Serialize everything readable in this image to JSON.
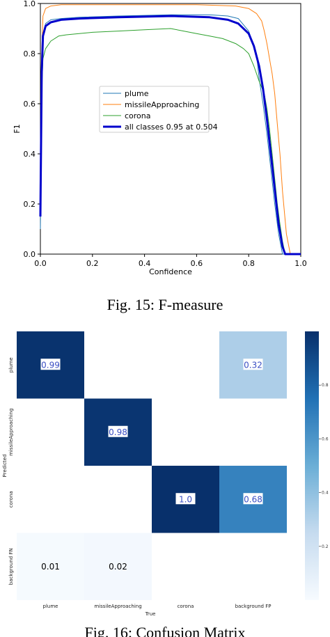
{
  "figures": [
    {
      "caption": "Fig. 15: F-measure"
    },
    {
      "caption": "Fig. 16: Confusion Matrix"
    }
  ],
  "chart_data": [
    {
      "type": "line",
      "xlabel": "Confidence",
      "ylabel": "F1",
      "xlim": [
        0,
        1
      ],
      "ylim": [
        0,
        1
      ],
      "xticks": [
        "0.0",
        "0.2",
        "0.4",
        "0.6",
        "0.8",
        "1.0"
      ],
      "yticks": [
        "0.0",
        "0.2",
        "0.4",
        "0.6",
        "0.8",
        "1.0"
      ],
      "grid": false,
      "legend_position": "center",
      "series": [
        {
          "name": "plume",
          "color": "#1f77b4",
          "width": 1,
          "x": [
            0.0,
            0.005,
            0.01,
            0.02,
            0.04,
            0.08,
            0.15,
            0.3,
            0.5,
            0.65,
            0.72,
            0.76,
            0.8,
            0.83,
            0.84,
            0.855,
            0.87,
            0.885,
            0.9,
            0.915,
            0.93,
            0.95,
            1.0
          ],
          "y": [
            0.1,
            0.7,
            0.88,
            0.92,
            0.935,
            0.94,
            0.945,
            0.95,
            0.955,
            0.955,
            0.95,
            0.94,
            0.89,
            0.8,
            0.7,
            0.6,
            0.48,
            0.34,
            0.2,
            0.08,
            0.0,
            0.0,
            0.0
          ]
        },
        {
          "name": "missileApproaching",
          "color": "#ff7f0e",
          "width": 1,
          "x": [
            0.0,
            0.005,
            0.01,
            0.02,
            0.04,
            0.08,
            0.2,
            0.4,
            0.6,
            0.75,
            0.8,
            0.83,
            0.85,
            0.86,
            0.87,
            0.88,
            0.89,
            0.9,
            0.91,
            0.92,
            0.93,
            0.945,
            0.96,
            1.0
          ],
          "y": [
            0.2,
            0.8,
            0.95,
            0.98,
            0.99,
            0.995,
            0.995,
            0.995,
            0.995,
            0.99,
            0.98,
            0.96,
            0.93,
            0.89,
            0.84,
            0.78,
            0.72,
            0.64,
            0.52,
            0.4,
            0.25,
            0.08,
            0.0,
            0.0
          ]
        },
        {
          "name": "corona",
          "color": "#2ca02c",
          "width": 1,
          "x": [
            0.0,
            0.005,
            0.01,
            0.02,
            0.04,
            0.07,
            0.1,
            0.2,
            0.3,
            0.4,
            0.5,
            0.55,
            0.6,
            0.65,
            0.7,
            0.75,
            0.78,
            0.8,
            0.82,
            0.84,
            0.86,
            0.87,
            0.88,
            0.89,
            0.9,
            0.91,
            0.92,
            0.93,
            0.94,
            1.0
          ],
          "y": [
            0.2,
            0.65,
            0.78,
            0.82,
            0.85,
            0.87,
            0.875,
            0.885,
            0.89,
            0.895,
            0.9,
            0.89,
            0.88,
            0.87,
            0.86,
            0.84,
            0.82,
            0.8,
            0.75,
            0.69,
            0.64,
            0.58,
            0.5,
            0.4,
            0.3,
            0.2,
            0.12,
            0.05,
            0.0,
            0.0
          ]
        },
        {
          "name": "all classes 0.95 at 0.504",
          "color": "#0000cc",
          "width": 3,
          "x": [
            0.0,
            0.005,
            0.01,
            0.02,
            0.04,
            0.08,
            0.15,
            0.3,
            0.504,
            0.65,
            0.72,
            0.76,
            0.8,
            0.82,
            0.84,
            0.855,
            0.87,
            0.885,
            0.9,
            0.915,
            0.93,
            0.94,
            1.0
          ],
          "y": [
            0.15,
            0.72,
            0.87,
            0.91,
            0.925,
            0.935,
            0.94,
            0.945,
            0.95,
            0.945,
            0.935,
            0.92,
            0.88,
            0.83,
            0.75,
            0.66,
            0.54,
            0.4,
            0.26,
            0.12,
            0.03,
            0.0,
            0.0
          ]
        }
      ]
    },
    {
      "type": "heatmap",
      "xlabel": "True",
      "ylabel": "Predicted",
      "x_categories": [
        "plume",
        "missileApproaching",
        "corona",
        "background FP"
      ],
      "y_categories": [
        "plume",
        "missileApproaching",
        "corona",
        "background FN"
      ],
      "values": [
        [
          0.99,
          null,
          null,
          0.32
        ],
        [
          null,
          0.98,
          null,
          null
        ],
        [
          null,
          null,
          1.0,
          0.68
        ],
        [
          0.01,
          0.02,
          null,
          null
        ]
      ],
      "value_labels": [
        [
          "0.99",
          "",
          "",
          "0.32"
        ],
        [
          "",
          "0.98",
          "",
          ""
        ],
        [
          "",
          "",
          "1.0",
          "0.68"
        ],
        [
          "0.01",
          "0.02",
          "",
          ""
        ]
      ],
      "colormap": "Blues",
      "colorbar_range": [
        0,
        1
      ],
      "colorbar_ticks": [
        "0.2",
        "0.4",
        "0.6",
        "0.8"
      ]
    }
  ]
}
